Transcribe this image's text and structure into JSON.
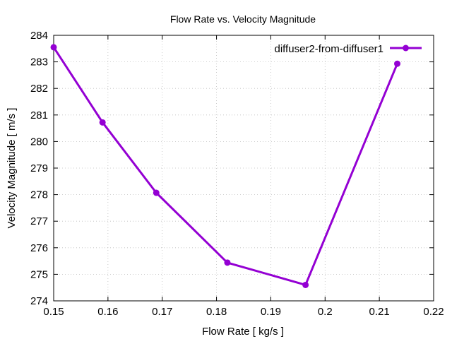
{
  "chart_data": {
    "type": "line",
    "title": "Flow Rate vs. Velocity Magnitude",
    "xlabel": "Flow Rate [ kg/s ]",
    "ylabel": "Velocity Magnitude [ m/s ]",
    "xlim": [
      0.15,
      0.22
    ],
    "ylim": [
      274,
      284
    ],
    "xticks": [
      0.15,
      0.16,
      0.17,
      0.18,
      0.19,
      0.2,
      0.21,
      0.22
    ],
    "xtick_labels": [
      "0.15",
      "0.16",
      "0.17",
      "0.18",
      "0.19",
      "0.2",
      "0.21",
      "0.22"
    ],
    "yticks": [
      274,
      275,
      276,
      277,
      278,
      279,
      280,
      281,
      282,
      283,
      284
    ],
    "ytick_labels": [
      "274",
      "275",
      "276",
      "277",
      "278",
      "279",
      "280",
      "281",
      "282",
      "283",
      "284"
    ],
    "grid": true,
    "legend_position": "top-right",
    "series": [
      {
        "name": "diffuser2-from-diffuser1",
        "color": "#9400d3",
        "x": [
          0.15,
          0.159,
          0.1689,
          0.182,
          0.1964,
          0.2133
        ],
        "y": [
          283.55,
          280.72,
          278.07,
          275.44,
          274.6,
          282.93
        ]
      }
    ]
  }
}
